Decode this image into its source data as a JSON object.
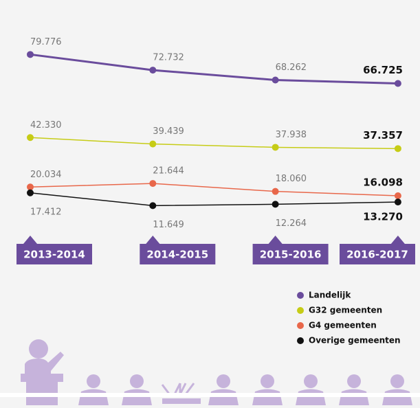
{
  "chart_data": {
    "type": "line",
    "categories": [
      "2013-2014",
      "2014-2015",
      "2015-2016",
      "2016-2017"
    ],
    "series": [
      {
        "name": "Landelijk",
        "color": "#6a4c9c",
        "values": [
          79776,
          72732,
          68262,
          66725
        ],
        "value_labels": [
          "79.776",
          "72.732",
          "68.262",
          "66.725"
        ]
      },
      {
        "name": "G32 gemeenten",
        "color": "#c6cc16",
        "values": [
          42330,
          39439,
          37938,
          37357
        ],
        "value_labels": [
          "42.330",
          "39.439",
          "37.938",
          "37.357"
        ]
      },
      {
        "name": "G4 gemeenten",
        "color": "#e8674a",
        "values": [
          20034,
          21644,
          18060,
          16098
        ],
        "value_labels": [
          "20.034",
          "21.644",
          "18.060",
          "16.098"
        ]
      },
      {
        "name": "Overige gemeenten",
        "color": "#111111",
        "values": [
          17412,
          11649,
          12264,
          13270
        ],
        "value_labels": [
          "17.412",
          "11.649",
          "12.264",
          "13.270"
        ]
      }
    ]
  }
}
